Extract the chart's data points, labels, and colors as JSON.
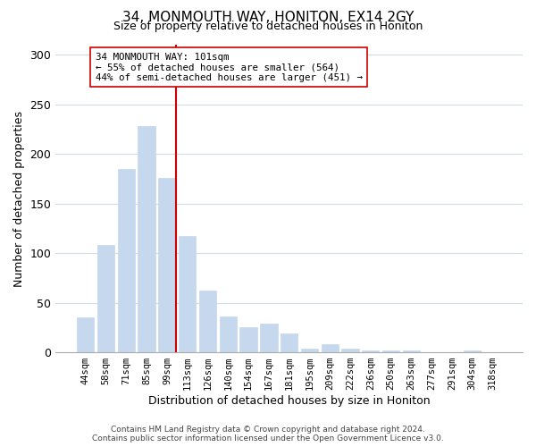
{
  "title": "34, MONMOUTH WAY, HONITON, EX14 2GY",
  "subtitle": "Size of property relative to detached houses in Honiton",
  "xlabel": "Distribution of detached houses by size in Honiton",
  "ylabel": "Number of detached properties",
  "bar_labels": [
    "44sqm",
    "58sqm",
    "71sqm",
    "85sqm",
    "99sqm",
    "113sqm",
    "126sqm",
    "140sqm",
    "154sqm",
    "167sqm",
    "181sqm",
    "195sqm",
    "209sqm",
    "222sqm",
    "236sqm",
    "250sqm",
    "263sqm",
    "277sqm",
    "291sqm",
    "304sqm",
    "318sqm"
  ],
  "bar_values": [
    35,
    108,
    185,
    228,
    176,
    117,
    62,
    36,
    25,
    29,
    19,
    4,
    8,
    4,
    2,
    2,
    2,
    0,
    0,
    2,
    0
  ],
  "bar_color": "#c5d8ed",
  "bar_edge_color": "#c5d8ed",
  "vline_x_index": 4,
  "vline_color": "#cc0000",
  "annotation_text": "34 MONMOUTH WAY: 101sqm\n← 55% of detached houses are smaller (564)\n44% of semi-detached houses are larger (451) →",
  "ylim": [
    0,
    310
  ],
  "yticks": [
    0,
    50,
    100,
    150,
    200,
    250,
    300
  ],
  "footer": "Contains HM Land Registry data © Crown copyright and database right 2024.\nContains public sector information licensed under the Open Government Licence v3.0.",
  "background_color": "#ffffff",
  "grid_color": "#d0dce8"
}
